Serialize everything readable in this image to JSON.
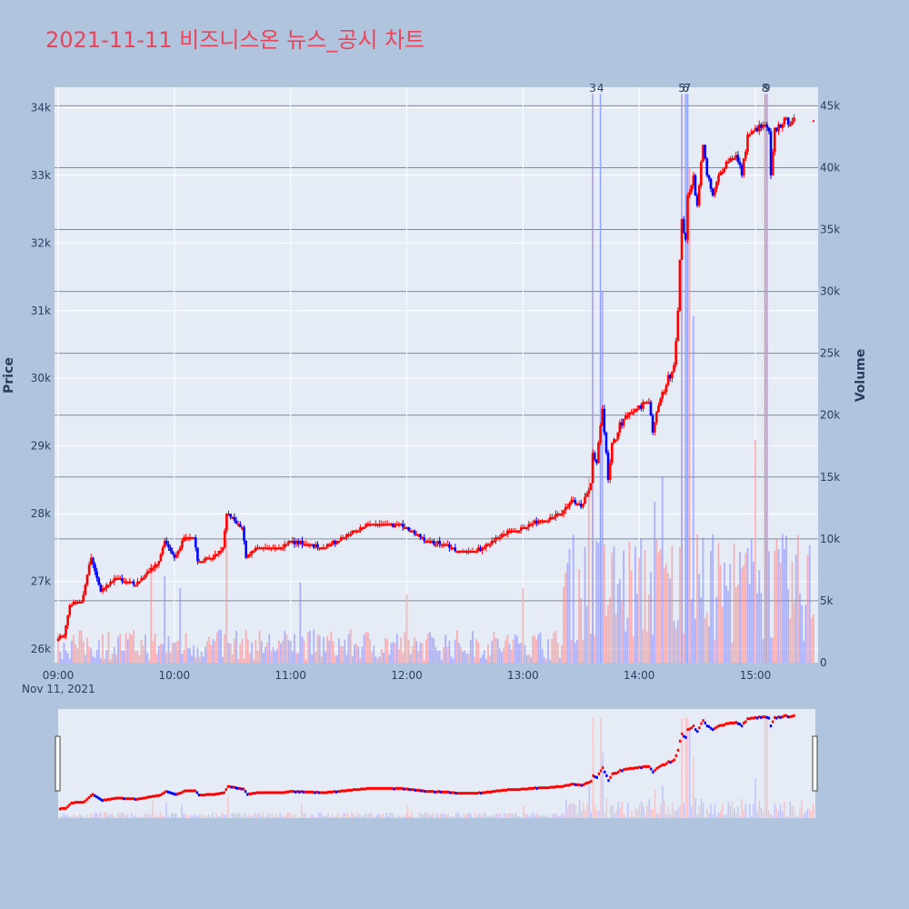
{
  "title": "2021-11-11 비즈니스온 뉴스_공시 차트",
  "chart_data": {
    "type": "candlestick",
    "title": "2021-11-11 비즈니스온 뉴스_공시 차트",
    "ylabel": "Price",
    "y2label": "Volume",
    "x_tick_labels": [
      "09:00",
      "10:00",
      "11:00",
      "12:00",
      "13:00",
      "14:00",
      "15:00"
    ],
    "x_date_label": "Nov 11, 2021",
    "xlim": [
      "09:00",
      "15:30"
    ],
    "ylim": [
      25800,
      34300
    ],
    "y2lim": [
      0,
      46500
    ],
    "y_ticks": [
      26000,
      27000,
      28000,
      29000,
      30000,
      31000,
      32000,
      33000,
      34000
    ],
    "y_tick_labels": [
      "26k",
      "27k",
      "28k",
      "29k",
      "30k",
      "31k",
      "32k",
      "33k",
      "34k"
    ],
    "y2_ticks": [
      0,
      5000,
      10000,
      15000,
      20000,
      25000,
      30000,
      35000,
      40000,
      45000
    ],
    "y2_tick_labels": [
      "0",
      "5k",
      "10k",
      "15k",
      "20k",
      "25k",
      "30k",
      "35k",
      "40k",
      "45k"
    ],
    "up_color": "#ff0000",
    "down_color": "#0000ff",
    "price_anchors": [
      [
        "09:00",
        26150
      ],
      [
        "09:03",
        26200
      ],
      [
        "09:06",
        26650
      ],
      [
        "09:12",
        26700
      ],
      [
        "09:17",
        27350
      ],
      [
        "09:22",
        26850
      ],
      [
        "09:30",
        27050
      ],
      [
        "09:36",
        27000
      ],
      [
        "09:40",
        26950
      ],
      [
        "09:45",
        27100
      ],
      [
        "09:52",
        27300
      ],
      [
        "09:55",
        27600
      ],
      [
        "10:00",
        27350
      ],
      [
        "10:05",
        27650
      ],
      [
        "10:10",
        27650
      ],
      [
        "10:12",
        27300
      ],
      [
        "10:20",
        27350
      ],
      [
        "10:25",
        27500
      ],
      [
        "10:27",
        28000
      ],
      [
        "10:35",
        27800
      ],
      [
        "10:37",
        27350
      ],
      [
        "10:42",
        27500
      ],
      [
        "10:55",
        27500
      ],
      [
        "11:00",
        27600
      ],
      [
        "11:10",
        27550
      ],
      [
        "11:15",
        27500
      ],
      [
        "11:25",
        27600
      ],
      [
        "11:30",
        27700
      ],
      [
        "11:40",
        27850
      ],
      [
        "11:50",
        27850
      ],
      [
        "12:00",
        27800
      ],
      [
        "12:05",
        27700
      ],
      [
        "12:10",
        27600
      ],
      [
        "12:20",
        27550
      ],
      [
        "12:25",
        27450
      ],
      [
        "12:35",
        27450
      ],
      [
        "12:40",
        27500
      ],
      [
        "12:50",
        27700
      ],
      [
        "13:00",
        27800
      ],
      [
        "13:10",
        27900
      ],
      [
        "13:20",
        28000
      ],
      [
        "13:25",
        28200
      ],
      [
        "13:30",
        28100
      ],
      [
        "13:35",
        28400
      ],
      [
        "13:36",
        28900
      ],
      [
        "13:38",
        28700
      ],
      [
        "13:40",
        29300
      ],
      [
        "13:41",
        29600
      ],
      [
        "13:44",
        28500
      ],
      [
        "13:46",
        29000
      ],
      [
        "13:50",
        29300
      ],
      [
        "13:55",
        29500
      ],
      [
        "14:00",
        29550
      ],
      [
        "14:05",
        29700
      ],
      [
        "14:07",
        29200
      ],
      [
        "14:10",
        29600
      ],
      [
        "14:15",
        30000
      ],
      [
        "14:18",
        30200
      ],
      [
        "14:20",
        31000
      ],
      [
        "14:22",
        32400
      ],
      [
        "14:24",
        32000
      ],
      [
        "14:25",
        32700
      ],
      [
        "14:28",
        33000
      ],
      [
        "14:30",
        32500
      ],
      [
        "14:33",
        33500
      ],
      [
        "14:35",
        33000
      ],
      [
        "14:38",
        32700
      ],
      [
        "14:40",
        32900
      ],
      [
        "14:45",
        33200
      ],
      [
        "14:50",
        33300
      ],
      [
        "14:53",
        33000
      ],
      [
        "14:56",
        33600
      ],
      [
        "15:00",
        33650
      ],
      [
        "15:05",
        33750
      ],
      [
        "15:07",
        33600
      ],
      [
        "15:08",
        33000
      ],
      [
        "15:10",
        33650
      ],
      [
        "15:15",
        33800
      ],
      [
        "15:20",
        33800
      ]
    ],
    "volume_spikes": [
      [
        "13:36",
        46000
      ],
      [
        "13:40",
        46000
      ],
      [
        "14:22",
        46000
      ],
      [
        "14:24",
        46000
      ],
      [
        "14:25",
        46000
      ],
      [
        "15:05",
        46000
      ],
      [
        "15:06",
        46000
      ],
      [
        "13:41",
        30000
      ],
      [
        "14:26",
        40000
      ],
      [
        "14:24",
        35000
      ],
      [
        "14:28",
        28000
      ],
      [
        "15:00",
        18000
      ],
      [
        "14:08",
        13000
      ],
      [
        "14:12",
        15000
      ],
      [
        "13:34",
        15000
      ],
      [
        "10:27",
        10000
      ],
      [
        "09:48",
        8000
      ],
      [
        "11:05",
        6500
      ],
      [
        "12:00",
        5500
      ],
      [
        "13:00",
        6000
      ],
      [
        "09:55",
        7000
      ],
      [
        "10:03",
        6000
      ]
    ],
    "annotations": [
      {
        "label": "3",
        "time": "13:36"
      },
      {
        "label": "4",
        "time": "13:40"
      },
      {
        "label": "5",
        "time": "14:22"
      },
      {
        "label": "6",
        "time": "14:24"
      },
      {
        "label": "7",
        "time": "14:25"
      },
      {
        "label": "8",
        "time": "15:05"
      },
      {
        "label": "9",
        "time": "15:06"
      }
    ]
  }
}
